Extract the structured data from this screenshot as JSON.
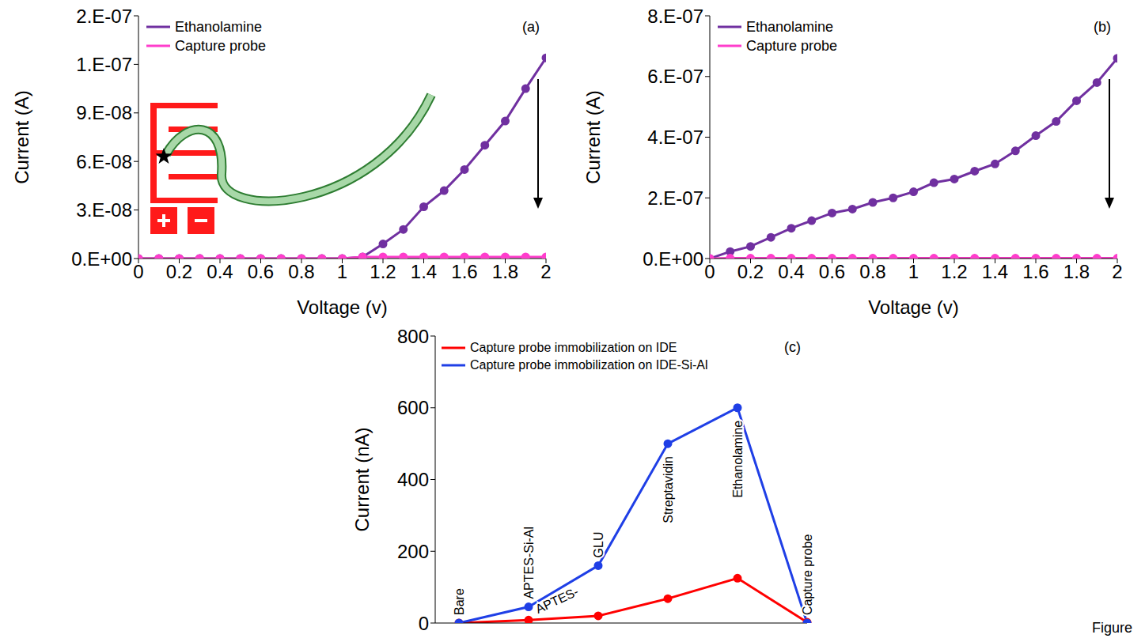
{
  "chart_data": [
    {
      "type": "line",
      "title": "(a)",
      "x_label": "Voltage (v)",
      "y_label": "Current (A)",
      "x": [
        0,
        0.1,
        0.2,
        0.3,
        0.4,
        0.5,
        0.6,
        0.7,
        0.8,
        0.9,
        1,
        1.1,
        1.2,
        1.3,
        1.4,
        1.5,
        1.6,
        1.7,
        1.8,
        1.9,
        2
      ],
      "series": [
        {
          "name": "Ethanolamine",
          "color": "#7030a0",
          "marker": "circle",
          "values": [
            0,
            0,
            0,
            0,
            0,
            0,
            0,
            0,
            0,
            0,
            0,
            1e-09,
            9e-09,
            1.8e-08,
            3.2e-08,
            4.2e-08,
            5.5e-08,
            7e-08,
            8.5e-08,
            1.05e-07,
            1.24e-07
          ]
        },
        {
          "name": "Capture probe",
          "color": "#ff3dcc",
          "marker": "circle",
          "values": [
            0,
            0,
            0,
            0,
            0,
            0,
            0,
            0,
            0,
            0,
            0,
            1e-09,
            1e-09,
            1e-09,
            1e-09,
            1e-09,
            1e-09,
            1e-09,
            1e-09,
            1e-09,
            1e-09
          ]
        }
      ],
      "xlim": [
        0,
        2
      ],
      "xticks": [
        0,
        0.2,
        0.4,
        0.6,
        0.8,
        1,
        1.2,
        1.4,
        1.6,
        1.8,
        2
      ],
      "ylim": [
        0,
        1.5e-07
      ],
      "yticks": [
        {
          "value": 0,
          "label": "0.E+00"
        },
        {
          "value": 3e-08,
          "label": "3.E-08"
        },
        {
          "value": 6e-08,
          "label": "6.E-08"
        },
        {
          "value": 9e-08,
          "label": "9.E-08"
        },
        {
          "value": 1.2e-07,
          "label": "1.E-07"
        },
        {
          "value": 1.5e-07,
          "label": "2.E-07"
        }
      ],
      "legend": "upper left",
      "grid": false
    },
    {
      "type": "line",
      "title": "(b)",
      "x_label": "Voltage (v)",
      "y_label": "Current (A)",
      "x": [
        0,
        0.1,
        0.2,
        0.3,
        0.4,
        0.5,
        0.6,
        0.7,
        0.8,
        0.9,
        1,
        1.1,
        1.2,
        1.3,
        1.4,
        1.5,
        1.6,
        1.7,
        1.8,
        1.9,
        2
      ],
      "series": [
        {
          "name": "Ethanolamine",
          "color": "#7030a0",
          "marker": "circle",
          "values": [
            0,
            2.3e-08,
            4e-08,
            7e-08,
            1e-07,
            1.25e-07,
            1.5e-07,
            1.63e-07,
            1.85e-07,
            2e-07,
            2.2e-07,
            2.5e-07,
            2.62e-07,
            2.88e-07,
            3.12e-07,
            3.55e-07,
            4.05e-07,
            4.52e-07,
            5.2e-07,
            5.8e-07,
            6.6e-07
          ]
        },
        {
          "name": "Capture probe",
          "color": "#ff3dcc",
          "marker": "circle",
          "values": [
            0,
            1e-09,
            1e-09,
            1e-09,
            1e-09,
            1e-09,
            1e-09,
            1e-09,
            1e-09,
            1e-09,
            1e-09,
            1e-09,
            1e-09,
            1e-09,
            1e-09,
            1e-09,
            1e-09,
            1e-09,
            1e-09,
            1e-09,
            1e-09
          ]
        }
      ],
      "xlim": [
        0,
        2
      ],
      "xticks": [
        0,
        0.2,
        0.4,
        0.6,
        0.8,
        1,
        1.2,
        1.4,
        1.6,
        1.8,
        2
      ],
      "ylim": [
        0,
        8e-07
      ],
      "yticks": [
        {
          "value": 0,
          "label": "0.E+00"
        },
        {
          "value": 2e-07,
          "label": "2.E-07"
        },
        {
          "value": 4e-07,
          "label": "4.E-07"
        },
        {
          "value": 6e-07,
          "label": "6.E-07"
        },
        {
          "value": 8e-07,
          "label": "8.E-07"
        }
      ],
      "legend": "upper left",
      "grid": false
    },
    {
      "type": "line",
      "title": "(c)",
      "y_label": "Current (nA)",
      "categories": [
        "Bare",
        "APTES-Si-Al",
        "GLU",
        "Streptavidin",
        "Ethanolamine",
        "Capture probe"
      ],
      "series": [
        {
          "name": "Capture probe immobilization on IDE",
          "color": "#ff0000",
          "marker": "circle",
          "values": [
            0,
            8,
            20,
            68,
            125,
            2
          ]
        },
        {
          "name": "Capture probe immobilization on IDE-Si-Al",
          "color": "#1f3fe6",
          "marker": "circle",
          "values": [
            0,
            45,
            160,
            500,
            600,
            0
          ]
        }
      ],
      "ylim": [
        0,
        800
      ],
      "yticks": [
        0,
        200,
        400,
        600,
        800
      ],
      "tick_labels": "y",
      "legend": "upper left",
      "grid": false,
      "annotations": [
        {
          "text": "APTES-",
          "category": "APTES-Si-Al",
          "series": "Capture probe immobilization on IDE"
        }
      ]
    }
  ],
  "footer": "Figure"
}
